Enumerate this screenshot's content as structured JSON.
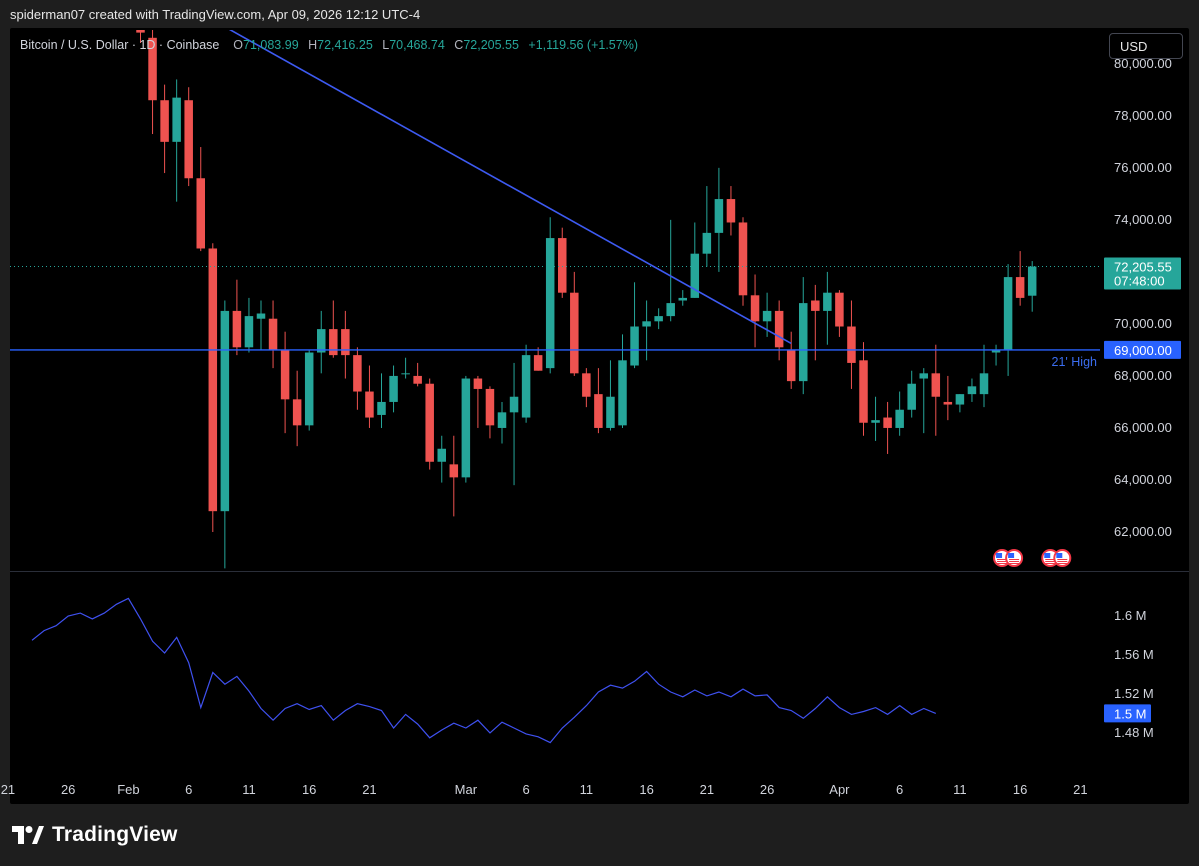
{
  "header": {
    "attribution": "spiderman07 created with TradingView.com, Apr 09, 2026 12:12 UTC-4"
  },
  "legend": {
    "symbol": "Bitcoin / U.S. Dollar · 1D · Coinbase",
    "open_label": "O",
    "open": "71,083.99",
    "high_label": "H",
    "high": "72,416.25",
    "low_label": "L",
    "low": "70,468.74",
    "close_label": "C",
    "close": "72,205.55",
    "change": "+1,119.56 (+1.57%)"
  },
  "currency_button": "USD",
  "footer": {
    "brand": "TradingView"
  },
  "colors": {
    "up": "#26a69a",
    "down": "#ef5350",
    "trendline": "#3d5af1",
    "level": "#2962ff",
    "volume_line": "#3f51f0"
  },
  "chart_data": [
    {
      "type": "candlestick",
      "title": "Bitcoin / U.S. Dollar · 1D · Coinbase",
      "y_ticks": [
        "80,000.00",
        "78,000.00",
        "76,000.00",
        "74,000.00",
        "72,000.00",
        "70,000.00",
        "68,000.00",
        "66,000.00",
        "64,000.00",
        "62,000.00"
      ],
      "ylim": [
        60500,
        81300
      ],
      "x_ticks": [
        "21",
        "26",
        "Feb",
        "6",
        "11",
        "16",
        "21",
        "Mar",
        "6",
        "11",
        "16",
        "21",
        "26",
        "Apr",
        "6",
        "11",
        "16",
        "21"
      ],
      "last_price_label": "72,205.55",
      "countdown_label": "07:48:00",
      "horizontal_level": {
        "value": 69000,
        "label": "69,000.00",
        "annotation": "21' High"
      },
      "trendline": {
        "from": {
          "day": 4,
          "value": 82200
        },
        "to": {
          "day": 54,
          "value": 69250
        }
      },
      "candles": [
        {
          "day": 0,
          "o": 83000,
          "h": 83600,
          "l": 80800,
          "c": 81200
        },
        {
          "day": 1,
          "o": 81000,
          "h": 81400,
          "l": 77300,
          "c": 78600
        },
        {
          "day": 2,
          "o": 78600,
          "h": 79200,
          "l": 75800,
          "c": 77000
        },
        {
          "day": 3,
          "o": 77000,
          "h": 79400,
          "l": 74700,
          "c": 78700
        },
        {
          "day": 4,
          "o": 78600,
          "h": 79100,
          "l": 75300,
          "c": 75600
        },
        {
          "day": 5,
          "o": 75600,
          "h": 76800,
          "l": 72800,
          "c": 72900
        },
        {
          "day": 6,
          "o": 72900,
          "h": 73100,
          "l": 62000,
          "c": 62800
        },
        {
          "day": 7,
          "o": 62800,
          "h": 70900,
          "l": 60600,
          "c": 70500
        },
        {
          "day": 8,
          "o": 70500,
          "h": 71700,
          "l": 68800,
          "c": 69100
        },
        {
          "day": 9,
          "o": 69100,
          "h": 71000,
          "l": 68900,
          "c": 70300
        },
        {
          "day": 10,
          "o": 70200,
          "h": 70900,
          "l": 69000,
          "c": 70400
        },
        {
          "day": 11,
          "o": 70200,
          "h": 70900,
          "l": 68300,
          "c": 69000
        },
        {
          "day": 12,
          "o": 69000,
          "h": 69700,
          "l": 65800,
          "c": 67100
        },
        {
          "day": 13,
          "o": 67100,
          "h": 68200,
          "l": 65300,
          "c": 66100
        },
        {
          "day": 14,
          "o": 66100,
          "h": 69000,
          "l": 65900,
          "c": 68900
        },
        {
          "day": 15,
          "o": 68900,
          "h": 70500,
          "l": 68100,
          "c": 69800
        },
        {
          "day": 16,
          "o": 69800,
          "h": 70900,
          "l": 68700,
          "c": 68800
        },
        {
          "day": 17,
          "o": 69800,
          "h": 70500,
          "l": 67900,
          "c": 68800
        },
        {
          "day": 18,
          "o": 68800,
          "h": 69100,
          "l": 66700,
          "c": 67400
        },
        {
          "day": 19,
          "o": 67400,
          "h": 68400,
          "l": 66000,
          "c": 66400
        },
        {
          "day": 20,
          "o": 66500,
          "h": 68100,
          "l": 66000,
          "c": 67000
        },
        {
          "day": 21,
          "o": 67000,
          "h": 68400,
          "l": 66600,
          "c": 68000
        },
        {
          "day": 22,
          "o": 68100,
          "h": 68700,
          "l": 67900,
          "c": 68100
        },
        {
          "day": 23,
          "o": 68000,
          "h": 68500,
          "l": 67600,
          "c": 67700
        },
        {
          "day": 24,
          "o": 67700,
          "h": 67900,
          "l": 64400,
          "c": 64700
        },
        {
          "day": 25,
          "o": 64700,
          "h": 65700,
          "l": 63900,
          "c": 65200
        },
        {
          "day": 26,
          "o": 64600,
          "h": 65700,
          "l": 62600,
          "c": 64100
        },
        {
          "day": 27,
          "o": 64100,
          "h": 68000,
          "l": 63900,
          "c": 67900
        },
        {
          "day": 28,
          "o": 67900,
          "h": 68000,
          "l": 66000,
          "c": 67500
        },
        {
          "day": 29,
          "o": 67500,
          "h": 67600,
          "l": 65600,
          "c": 66100
        },
        {
          "day": 30,
          "o": 66000,
          "h": 67000,
          "l": 65400,
          "c": 66600
        },
        {
          "day": 31,
          "o": 66600,
          "h": 68500,
          "l": 63800,
          "c": 67200
        },
        {
          "day": 32,
          "o": 66400,
          "h": 69200,
          "l": 66200,
          "c": 68800
        },
        {
          "day": 33,
          "o": 68800,
          "h": 69100,
          "l": 68200,
          "c": 68200
        },
        {
          "day": 34,
          "o": 68300,
          "h": 74100,
          "l": 68100,
          "c": 73300
        },
        {
          "day": 35,
          "o": 73300,
          "h": 73700,
          "l": 71000,
          "c": 71200
        },
        {
          "day": 36,
          "o": 71200,
          "h": 72000,
          "l": 68000,
          "c": 68100
        },
        {
          "day": 37,
          "o": 68100,
          "h": 68300,
          "l": 66800,
          "c": 67200
        },
        {
          "day": 38,
          "o": 67300,
          "h": 68300,
          "l": 65800,
          "c": 66000
        },
        {
          "day": 39,
          "o": 66000,
          "h": 68600,
          "l": 65900,
          "c": 67200
        },
        {
          "day": 40,
          "o": 66100,
          "h": 69600,
          "l": 66000,
          "c": 68600
        },
        {
          "day": 41,
          "o": 68400,
          "h": 71600,
          "l": 68300,
          "c": 69900
        },
        {
          "day": 42,
          "o": 69900,
          "h": 70900,
          "l": 68600,
          "c": 70100
        },
        {
          "day": 43,
          "o": 70100,
          "h": 70600,
          "l": 69800,
          "c": 70300
        },
        {
          "day": 44,
          "o": 70300,
          "h": 74000,
          "l": 70100,
          "c": 70800
        },
        {
          "day": 45,
          "o": 70900,
          "h": 71300,
          "l": 70700,
          "c": 71000
        },
        {
          "day": 46,
          "o": 71000,
          "h": 73900,
          "l": 71000,
          "c": 72700
        },
        {
          "day": 47,
          "o": 72700,
          "h": 75300,
          "l": 72200,
          "c": 73500
        },
        {
          "day": 48,
          "o": 73500,
          "h": 76000,
          "l": 72000,
          "c": 74800
        },
        {
          "day": 49,
          "o": 74800,
          "h": 75300,
          "l": 73400,
          "c": 73900
        },
        {
          "day": 50,
          "o": 73900,
          "h": 74100,
          "l": 70700,
          "c": 71100
        },
        {
          "day": 51,
          "o": 71100,
          "h": 71900,
          "l": 69100,
          "c": 70100
        },
        {
          "day": 52,
          "o": 70100,
          "h": 71200,
          "l": 69500,
          "c": 70500
        },
        {
          "day": 53,
          "o": 70500,
          "h": 70900,
          "l": 68600,
          "c": 69100
        },
        {
          "day": 54,
          "o": 69000,
          "h": 69700,
          "l": 67500,
          "c": 67800
        },
        {
          "day": 55,
          "o": 67800,
          "h": 71800,
          "l": 67300,
          "c": 70800
        },
        {
          "day": 56,
          "o": 70900,
          "h": 71500,
          "l": 68600,
          "c": 70500
        },
        {
          "day": 57,
          "o": 70500,
          "h": 72000,
          "l": 69200,
          "c": 71200
        },
        {
          "day": 58,
          "o": 71200,
          "h": 71300,
          "l": 69500,
          "c": 69900
        },
        {
          "day": 59,
          "o": 69900,
          "h": 70900,
          "l": 67500,
          "c": 68500
        },
        {
          "day": 60,
          "o": 68600,
          "h": 69300,
          "l": 65700,
          "c": 66200
        },
        {
          "day": 61,
          "o": 66200,
          "h": 67200,
          "l": 65500,
          "c": 66300
        },
        {
          "day": 62,
          "o": 66400,
          "h": 67000,
          "l": 65000,
          "c": 66000
        },
        {
          "day": 63,
          "o": 66000,
          "h": 67400,
          "l": 65700,
          "c": 66700
        },
        {
          "day": 64,
          "o": 66700,
          "h": 68200,
          "l": 66400,
          "c": 67700
        },
        {
          "day": 65,
          "o": 67900,
          "h": 68300,
          "l": 65800,
          "c": 68100
        },
        {
          "day": 66,
          "o": 68100,
          "h": 69200,
          "l": 65700,
          "c": 67200
        },
        {
          "day": 67,
          "o": 67000,
          "h": 68000,
          "l": 66300,
          "c": 66900
        },
        {
          "day": 68,
          "o": 66900,
          "h": 67300,
          "l": 66600,
          "c": 67300
        },
        {
          "day": 69,
          "o": 67300,
          "h": 67900,
          "l": 67000,
          "c": 67600
        },
        {
          "day": 70,
          "o": 67300,
          "h": 69200,
          "l": 66800,
          "c": 68100
        },
        {
          "day": 71,
          "o": 68900,
          "h": 69200,
          "l": 68400,
          "c": 69000
        },
        {
          "day": 72,
          "o": 69000,
          "h": 72300,
          "l": 68000,
          "c": 71800
        },
        {
          "day": 73,
          "o": 71800,
          "h": 72800,
          "l": 70700,
          "c": 71000
        },
        {
          "day": 74,
          "o": 71084,
          "h": 72416,
          "l": 70469,
          "c": 72206
        }
      ],
      "event_markers": [
        {
          "day": 71,
          "icon": "us-flag-icon"
        },
        {
          "day": 72,
          "icon": "us-flag-icon"
        },
        {
          "day": 75,
          "icon": "us-flag-icon"
        },
        {
          "day": 76,
          "icon": "us-flag-icon"
        }
      ]
    },
    {
      "type": "line",
      "y_ticks": [
        "1.6 M",
        "1.56 M",
        "1.52 M",
        "1.48 M"
      ],
      "ylim": [
        1.445,
        1.64
      ],
      "last_value_label": "1.5 M",
      "x_start_day": -9,
      "values": [
        1.575,
        1.585,
        1.59,
        1.6,
        1.603,
        1.597,
        1.603,
        1.612,
        1.618,
        1.597,
        1.574,
        1.562,
        1.578,
        1.552,
        1.506,
        1.542,
        1.53,
        1.538,
        1.523,
        1.505,
        1.493,
        1.505,
        1.51,
        1.504,
        1.508,
        1.493,
        1.503,
        1.51,
        1.507,
        1.503,
        1.485,
        1.499,
        1.489,
        1.475,
        1.483,
        1.49,
        1.485,
        1.493,
        1.48,
        1.491,
        1.485,
        1.479,
        1.476,
        1.47,
        1.485,
        1.496,
        1.508,
        1.522,
        1.529,
        1.526,
        1.533,
        1.543,
        1.53,
        1.522,
        1.517,
        1.524,
        1.518,
        1.522,
        1.517,
        1.525,
        1.518,
        1.519,
        1.506,
        1.503,
        1.495,
        1.505,
        1.517,
        1.506,
        1.499,
        1.502,
        1.506,
        1.499,
        1.508,
        1.499,
        1.505,
        1.5
      ]
    }
  ]
}
